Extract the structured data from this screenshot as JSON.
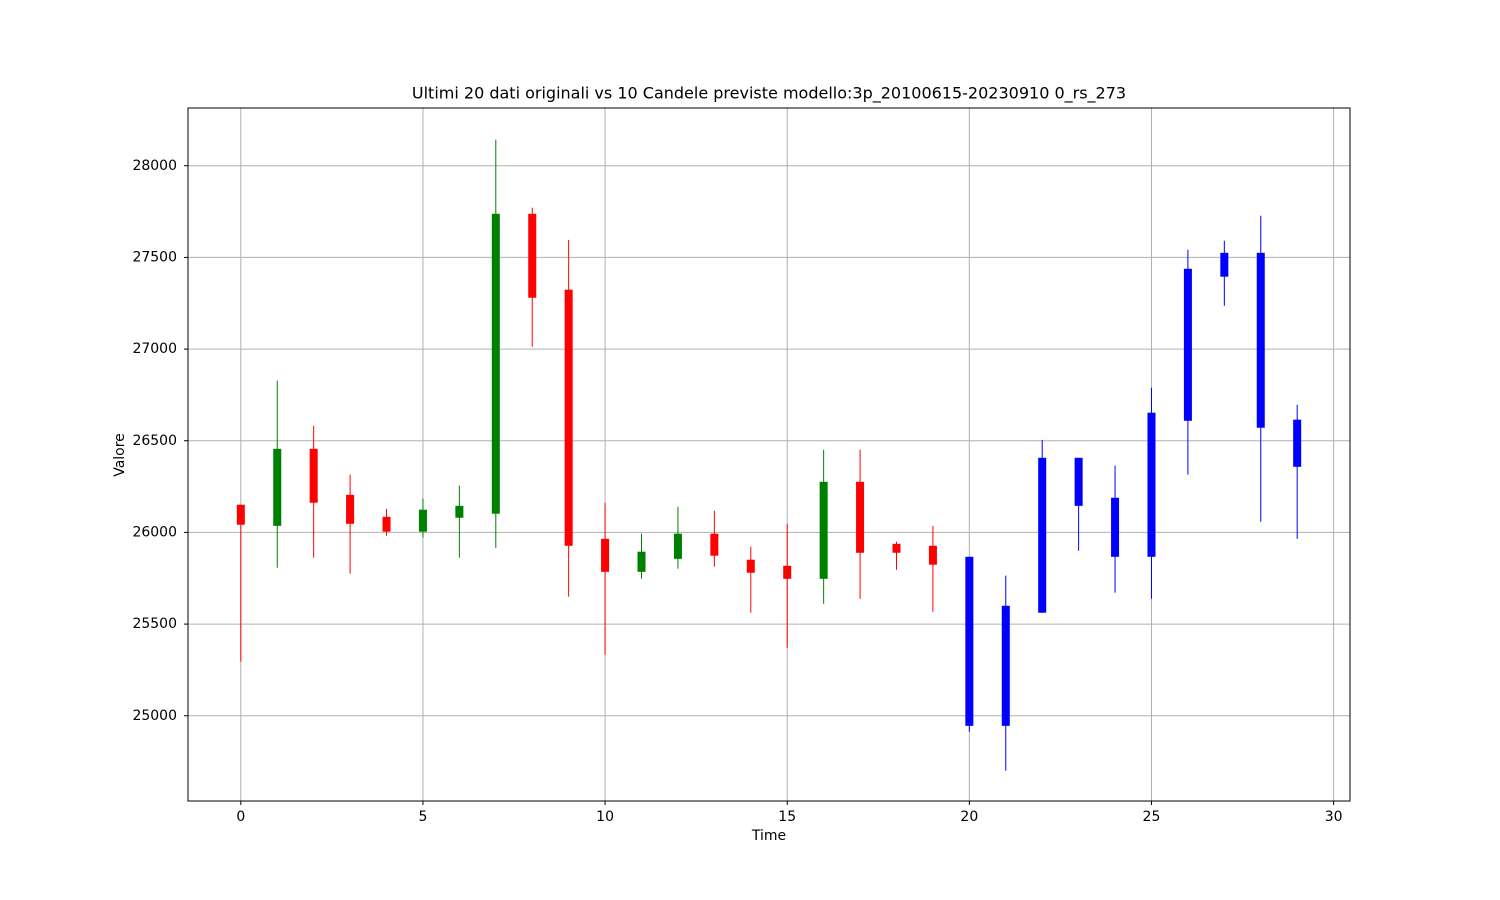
{
  "chart_data": {
    "type": "candlestick",
    "title": "Ultimi 20 dati originali vs 10 Candele previste modello:3p_20100615-20230910 0_rs_273",
    "x_label": "Time",
    "y_label": "Valore",
    "x": [
      0,
      1,
      2,
      3,
      4,
      5,
      6,
      7,
      8,
      9,
      10,
      11,
      12,
      13,
      14,
      15,
      16,
      17,
      18,
      19,
      20,
      21,
      22,
      23,
      24,
      25,
      26,
      27,
      28,
      29
    ],
    "open": [
      26151,
      26036,
      26456,
      26205,
      26085,
      26004,
      26080,
      26102,
      27738,
      27324,
      25965,
      25785,
      25856,
      25993,
      25851,
      25818,
      25747,
      26276,
      25938,
      25927,
      25867,
      24945,
      25562,
      26407,
      26189,
      25867,
      26609,
      27395,
      27525,
      26358
    ],
    "high": [
      26151,
      26827,
      26582,
      26315,
      26129,
      26184,
      26255,
      28142,
      27771,
      27596,
      26162,
      25993,
      26140,
      26118,
      25922,
      26047,
      26451,
      26451,
      25949,
      26036,
      25867,
      25764,
      26505,
      26407,
      26364,
      26789,
      27542,
      27591,
      27727,
      26696
    ],
    "low": [
      25295,
      25807,
      25862,
      25775,
      25982,
      25971,
      25862,
      25916,
      27013,
      25649,
      25333,
      25747,
      25802,
      25813,
      25562,
      25371,
      25611,
      25638,
      25796,
      25567,
      24913,
      24700,
      25562,
      25900,
      25671,
      25638,
      26315,
      27236,
      26058,
      25965
    ],
    "close": [
      26042,
      26456,
      26162,
      26047,
      26004,
      26124,
      26145,
      27738,
      27280,
      25927,
      25785,
      25895,
      25993,
      25873,
      25780,
      25747,
      26276,
      25889,
      25889,
      25824,
      24945,
      25600,
      26407,
      26145,
      25867,
      26653,
      27438,
      27525,
      26571,
      26615
    ],
    "colors": [
      "red",
      "green",
      "red",
      "red",
      "red",
      "green",
      "green",
      "green",
      "red",
      "red",
      "red",
      "green",
      "green",
      "red",
      "red",
      "red",
      "green",
      "red",
      "red",
      "red",
      "blue",
      "blue",
      "blue",
      "blue",
      "blue",
      "blue",
      "blue",
      "blue",
      "blue",
      "blue"
    ],
    "xlim": [
      -1.45,
      30.45
    ],
    "ylim": [
      24535,
      28315
    ],
    "xticks": [
      0,
      5,
      10,
      15,
      20,
      25,
      30
    ],
    "yticks": [
      25000,
      25500,
      26000,
      26500,
      27000,
      27500,
      28000
    ],
    "grid": true
  }
}
